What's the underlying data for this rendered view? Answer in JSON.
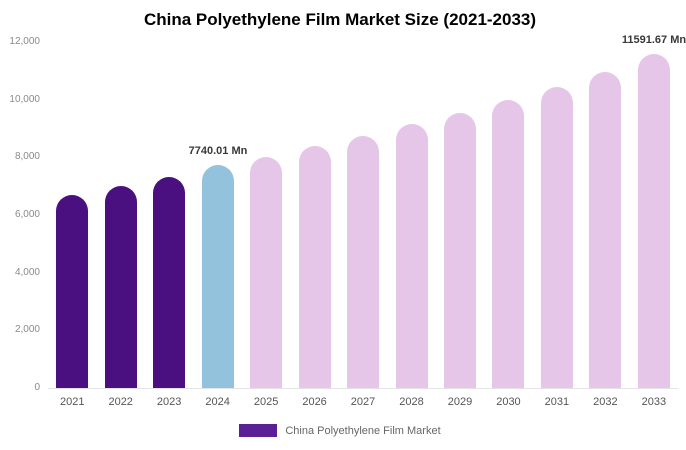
{
  "chart_data": {
    "type": "bar",
    "title": "China Polyethylene Film Market Size (2021-2033)",
    "categories": [
      "2021",
      "2022",
      "2023",
      "2024",
      "2025",
      "2026",
      "2027",
      "2028",
      "2029",
      "2030",
      "2031",
      "2032",
      "2033"
    ],
    "values": [
      6680,
      6990,
      7310,
      7740.01,
      8000,
      8380,
      8750,
      9150,
      9540,
      10000,
      10430,
      10950,
      11591.67
    ],
    "colors": [
      "#4a1080",
      "#4a1080",
      "#4a1080",
      "#93c2dd",
      "#e5c6e8",
      "#e5c6e8",
      "#e5c6e8",
      "#e5c6e8",
      "#e5c6e8",
      "#e5c6e8",
      "#e5c6e8",
      "#e5c6e8",
      "#e5c6e8"
    ],
    "ylim": [
      0,
      12000
    ],
    "yticks": [
      {
        "value": 0,
        "label": "0"
      },
      {
        "value": 2000,
        "label": "2,000"
      },
      {
        "value": 4000,
        "label": "4,000"
      },
      {
        "value": 6000,
        "label": "6,000"
      },
      {
        "value": 8000,
        "label": "8,000"
      },
      {
        "value": 10000,
        "label": "10,000"
      },
      {
        "value": 12000,
        "label": "12,000"
      }
    ],
    "annotations": [
      {
        "index": 3,
        "text": "7740.01 Mn"
      },
      {
        "index": 12,
        "text": "11591.67 Mn"
      }
    ],
    "grid": false,
    "legend_position": "bottom"
  },
  "legend": {
    "label": "China Polyethylene Film Market",
    "swatch_color": "#5b1f96"
  }
}
